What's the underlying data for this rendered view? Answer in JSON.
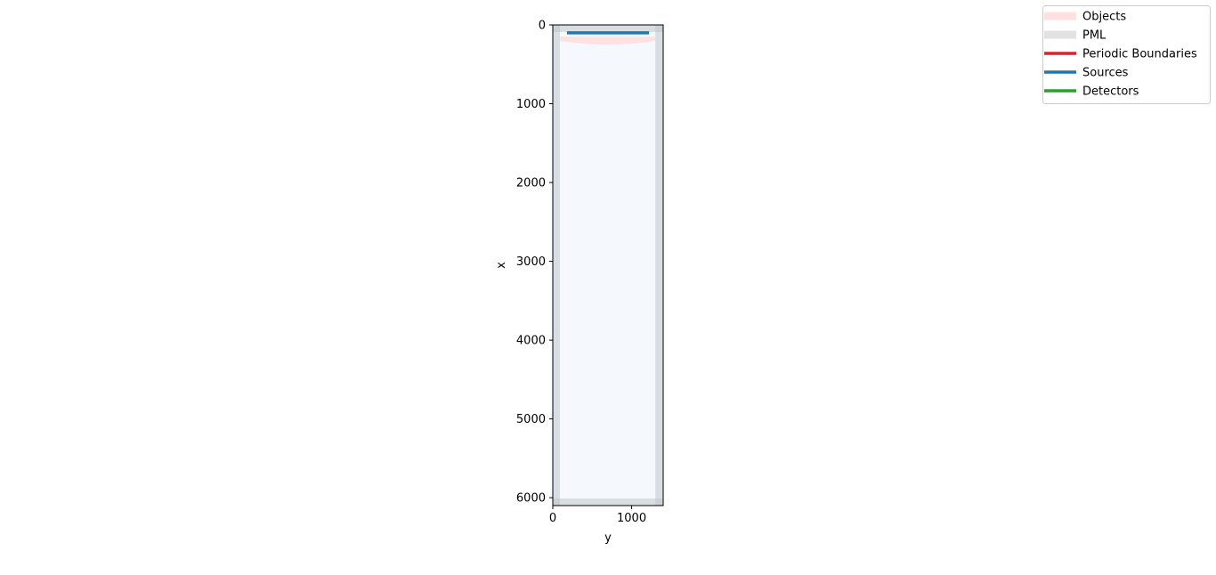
{
  "chart_data": {
    "type": "area",
    "xlabel": "y",
    "ylabel": "x",
    "xlim": [
      0,
      1400
    ],
    "ylim": [
      6100,
      0
    ],
    "x_ticks": [
      0,
      1000
    ],
    "y_ticks": [
      0,
      1000,
      2000,
      3000,
      4000,
      5000,
      6000
    ],
    "grid": false,
    "legend_placement": "top-right",
    "legend": [
      {
        "label": "Objects",
        "color": "#ffe0e0",
        "kind": "band"
      },
      {
        "label": "PML",
        "color": "#e2e2e2",
        "kind": "band"
      },
      {
        "label": "Periodic Boundaries",
        "color": "#d62728",
        "kind": "line"
      },
      {
        "label": "Sources",
        "color": "#1f77b4",
        "kind": "line"
      },
      {
        "label": "Detectors",
        "color": "#2ca02c",
        "kind": "line"
      }
    ],
    "background_color": "#f5f8fd",
    "pml_regions": [
      {
        "y0": 0,
        "y1": 90,
        "x0": 0,
        "x1": 6100
      },
      {
        "y0": 1300,
        "y1": 1400,
        "x0": 0,
        "x1": 6100
      },
      {
        "y0": 0,
        "y1": 1400,
        "x0": 0,
        "x1": 90
      },
      {
        "y0": 0,
        "y1": 1400,
        "x0": 6010,
        "x1": 6100
      }
    ],
    "object": {
      "y_range": [
        90,
        1300
      ],
      "x_top": 150,
      "x_bottom_edge": 200,
      "x_bottom_center": 250
    },
    "source": {
      "y_range": [
        180,
        1220
      ],
      "x": 100
    }
  }
}
